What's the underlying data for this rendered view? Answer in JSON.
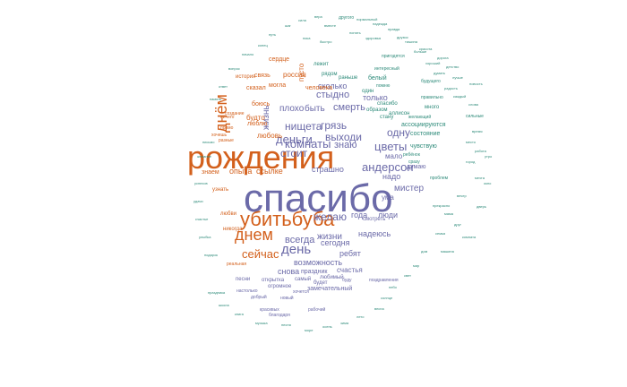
{
  "colors": {
    "purple": "#6b6aa8",
    "orange": "#d3601c",
    "teal": "#2e8b7a",
    "background": "#ffffff"
  },
  "words": [
    {
      "text": "спасибо",
      "color": "purple"
    },
    {
      "text": "рождения",
      "color": "orange"
    },
    {
      "text": "убитьбуба",
      "color": "orange"
    },
    {
      "text": "днем",
      "color": "orange"
    },
    {
      "text": "днём",
      "color": "orange"
    },
    {
      "text": "день",
      "color": "purple"
    },
    {
      "text": "сейчас",
      "color": "orange"
    },
    {
      "text": "нищета",
      "color": "purple"
    },
    {
      "text": "комнаты",
      "color": "purple"
    },
    {
      "text": "знаю",
      "color": "purple"
    },
    {
      "text": "цветы",
      "color": "purple"
    },
    {
      "text": "андерсон",
      "color": "purple"
    },
    {
      "text": "деньги",
      "color": "purple"
    },
    {
      "text": "выходи",
      "color": "purple"
    },
    {
      "text": "стоит",
      "color": "purple"
    },
    {
      "text": "одну",
      "color": "purple"
    },
    {
      "text": "смерть",
      "color": "purple"
    },
    {
      "text": "быть",
      "color": "purple"
    },
    {
      "text": "плохо",
      "color": "purple"
    },
    {
      "text": "жизнь",
      "color": "purple"
    },
    {
      "text": "грязь",
      "color": "purple"
    },
    {
      "text": "стыдно",
      "color": "purple"
    },
    {
      "text": "мистер",
      "color": "purple"
    },
    {
      "text": "желаю",
      "color": "purple"
    },
    {
      "text": "всегда",
      "color": "purple"
    },
    {
      "text": "жизни",
      "color": "purple"
    },
    {
      "text": "надеюсь",
      "color": "purple"
    },
    {
      "text": "сегодня",
      "color": "purple"
    },
    {
      "text": "года",
      "color": "purple"
    },
    {
      "text": "люди",
      "color": "purple"
    },
    {
      "text": "ребят",
      "color": "purple"
    },
    {
      "text": "возможность",
      "color": "purple"
    },
    {
      "text": "снова",
      "color": "purple"
    },
    {
      "text": "счастья",
      "color": "purple"
    },
    {
      "text": "праздник",
      "color": "purple"
    },
    {
      "text": "замечательный",
      "color": "purple"
    },
    {
      "text": "только",
      "color": "purple"
    },
    {
      "text": "сколько",
      "color": "purple"
    },
    {
      "text": "страшно",
      "color": "purple"
    },
    {
      "text": "надо",
      "color": "purple"
    },
    {
      "text": "мало",
      "color": "purple"
    },
    {
      "text": "думаю",
      "color": "purple"
    },
    {
      "text": "ума",
      "color": "purple"
    },
    {
      "text": "ссылке",
      "color": "orange"
    },
    {
      "text": "опыта",
      "color": "orange"
    },
    {
      "text": "знаем",
      "color": "orange"
    },
    {
      "text": "любовь",
      "color": "orange"
    },
    {
      "text": "будто",
      "color": "orange"
    },
    {
      "text": "россия",
      "color": "orange"
    },
    {
      "text": "пусто",
      "color": "orange"
    },
    {
      "text": "связь",
      "color": "orange"
    },
    {
      "text": "сказал",
      "color": "orange"
    },
    {
      "text": "могла",
      "color": "orange"
    },
    {
      "text": "сердце",
      "color": "orange"
    },
    {
      "text": "человека",
      "color": "orange"
    },
    {
      "text": "состояние",
      "color": "teal"
    },
    {
      "text": "ассоциируются",
      "color": "teal"
    },
    {
      "text": "чувствую",
      "color": "teal"
    },
    {
      "text": "стану",
      "color": "teal"
    },
    {
      "text": "образом",
      "color": "teal"
    },
    {
      "text": "спасибо",
      "color": "teal"
    },
    {
      "text": "один",
      "color": "teal"
    },
    {
      "text": "белый",
      "color": "teal"
    },
    {
      "text": "раньше",
      "color": "teal"
    },
    {
      "text": "лежит",
      "color": "teal"
    },
    {
      "text": "рядом",
      "color": "teal"
    },
    {
      "text": "аллисон",
      "color": "teal"
    },
    {
      "text": "помню",
      "color": "teal"
    },
    {
      "text": "сразу",
      "color": "teal"
    },
    {
      "text": "ребёнок",
      "color": "teal"
    },
    {
      "text": "проблем",
      "color": "teal"
    },
    {
      "text": "пригодятся",
      "color": "teal"
    },
    {
      "text": "будущего",
      "color": "teal"
    },
    {
      "text": "много",
      "color": "teal"
    },
    {
      "text": "правильно",
      "color": "teal"
    },
    {
      "text": "желающий",
      "color": "teal"
    },
    {
      "text": "любимый",
      "color": "purple"
    },
    {
      "text": "огромное",
      "color": "purple"
    },
    {
      "text": "открытка",
      "color": "purple"
    },
    {
      "text": "самый",
      "color": "purple"
    },
    {
      "text": "песни",
      "color": "purple"
    },
    {
      "text": "будет",
      "color": "purple"
    },
    {
      "text": "буду",
      "color": "purple"
    },
    {
      "text": "хочется",
      "color": "purple"
    },
    {
      "text": "настолько",
      "color": "purple"
    },
    {
      "text": "добрый",
      "color": "purple"
    },
    {
      "text": "новый",
      "color": "purple"
    },
    {
      "text": "красивых",
      "color": "purple"
    },
    {
      "text": "благодаря",
      "color": "purple"
    },
    {
      "text": "поздравления",
      "color": "purple"
    },
    {
      "text": "смотреть",
      "color": "purple"
    },
    {
      "text": "рабочий",
      "color": "purple"
    },
    {
      "text": "создание",
      "color": "orange"
    },
    {
      "text": "никогда",
      "color": "orange"
    },
    {
      "text": "узнать",
      "color": "orange"
    },
    {
      "text": "любви",
      "color": "orange"
    },
    {
      "text": "ничего",
      "color": "orange"
    },
    {
      "text": "прямо",
      "color": "orange"
    },
    {
      "text": "люблю",
      "color": "orange"
    },
    {
      "text": "боюсь",
      "color": "orange"
    },
    {
      "text": "хочешь",
      "color": "orange"
    },
    {
      "text": "разные",
      "color": "orange"
    },
    {
      "text": "история",
      "color": "orange"
    },
    {
      "text": "реальная",
      "color": "orange"
    },
    {
      "text": "другого",
      "color": "teal"
    },
    {
      "text": "нормальный",
      "color": "teal"
    },
    {
      "text": "вместе",
      "color": "teal"
    },
    {
      "text": "понять",
      "color": "teal"
    },
    {
      "text": "здоровья",
      "color": "teal"
    },
    {
      "text": "быстро",
      "color": "teal"
    },
    {
      "text": "пока",
      "color": "teal"
    },
    {
      "text": "интересный",
      "color": "teal"
    },
    {
      "text": "сильные",
      "color": "teal"
    },
    {
      "text": "прекрасно",
      "color": "teal"
    },
    {
      "text": "друзья",
      "color": "teal"
    },
    {
      "text": "красота",
      "color": "teal"
    },
    {
      "text": "радость",
      "color": "teal"
    },
    {
      "text": "больше",
      "color": "teal"
    },
    {
      "text": "хороший",
      "color": "teal"
    },
    {
      "text": "детство",
      "color": "teal"
    },
    {
      "text": "думать",
      "color": "teal"
    },
    {
      "text": "лучше",
      "color": "teal"
    },
    {
      "text": "каждый",
      "color": "teal"
    },
    {
      "text": "новость",
      "color": "teal"
    },
    {
      "text": "слова",
      "color": "teal"
    },
    {
      "text": "время",
      "color": "teal"
    },
    {
      "text": "место",
      "color": "teal"
    },
    {
      "text": "работа",
      "color": "teal"
    },
    {
      "text": "город",
      "color": "teal"
    },
    {
      "text": "утро",
      "color": "teal"
    },
    {
      "text": "мечта",
      "color": "teal"
    },
    {
      "text": "вечер",
      "color": "teal"
    },
    {
      "text": "мама",
      "color": "teal"
    },
    {
      "text": "друг",
      "color": "teal"
    },
    {
      "text": "семья",
      "color": "teal"
    },
    {
      "text": "дом",
      "color": "teal"
    },
    {
      "text": "мир",
      "color": "teal"
    },
    {
      "text": "свет",
      "color": "teal"
    },
    {
      "text": "небо",
      "color": "teal"
    },
    {
      "text": "солнце",
      "color": "teal"
    },
    {
      "text": "весна",
      "color": "teal"
    },
    {
      "text": "лето",
      "color": "teal"
    },
    {
      "text": "зима",
      "color": "teal"
    },
    {
      "text": "осень",
      "color": "teal"
    },
    {
      "text": "море",
      "color": "teal"
    },
    {
      "text": "песня",
      "color": "teal"
    },
    {
      "text": "музыка",
      "color": "teal"
    },
    {
      "text": "книга",
      "color": "teal"
    },
    {
      "text": "школа",
      "color": "teal"
    },
    {
      "text": "праздника",
      "color": "teal"
    },
    {
      "text": "подарок",
      "color": "teal"
    },
    {
      "text": "улыбка",
      "color": "teal"
    },
    {
      "text": "счастье",
      "color": "teal"
    },
    {
      "text": "удачи",
      "color": "teal"
    },
    {
      "text": "успехов",
      "color": "teal"
    },
    {
      "text": "желание",
      "color": "teal"
    },
    {
      "text": "письмо",
      "color": "teal"
    },
    {
      "text": "память",
      "color": "teal"
    },
    {
      "text": "ответ",
      "color": "teal"
    },
    {
      "text": "вопрос",
      "color": "teal"
    },
    {
      "text": "начало",
      "color": "teal"
    },
    {
      "text": "конец",
      "color": "teal"
    },
    {
      "text": "путь",
      "color": "teal"
    },
    {
      "text": "шаг",
      "color": "teal"
    },
    {
      "text": "сила",
      "color": "teal"
    },
    {
      "text": "вера",
      "color": "teal"
    },
    {
      "text": "надежда",
      "color": "teal"
    },
    {
      "text": "правда",
      "color": "teal"
    },
    {
      "text": "тишина",
      "color": "teal"
    },
    {
      "text": "дорога",
      "color": "teal"
    },
    {
      "text": "окно",
      "color": "teal"
    },
    {
      "text": "дверь",
      "color": "teal"
    },
    {
      "text": "комната",
      "color": "teal"
    },
    {
      "text": "машина",
      "color": "teal"
    }
  ]
}
